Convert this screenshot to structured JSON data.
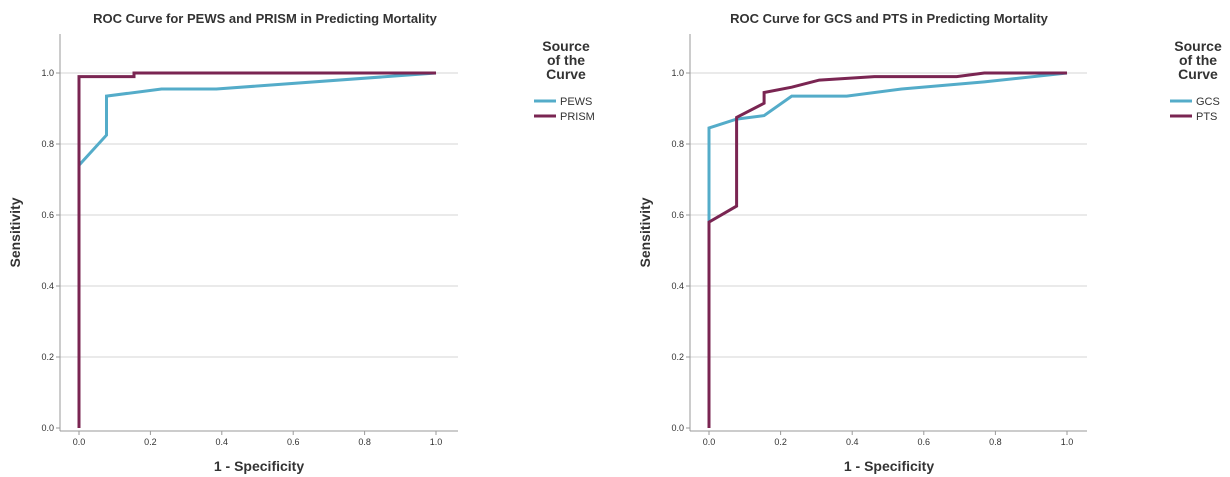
{
  "chart_data": [
    {
      "type": "line",
      "title": "ROC Curve for PEWS and PRISM in Predicting Mortality",
      "xlabel": "1 - Specificity",
      "ylabel": "Sensitivity",
      "xlim": [
        0,
        1
      ],
      "ylim": [
        0,
        1
      ],
      "xticks": [
        "0.0",
        "0.2",
        "0.4",
        "0.6",
        "0.8",
        "1.0"
      ],
      "yticks": [
        "0.0",
        "0.2",
        "0.4",
        "0.6",
        "0.8",
        "1.0"
      ],
      "grid": "horizontal",
      "legend": {
        "title": [
          "Source",
          "of the",
          "Curve"
        ],
        "position": "right"
      },
      "series": [
        {
          "name": "PEWS",
          "color": "#54acc9",
          "x": [
            0.0,
            0.077,
            0.077,
            0.231,
            0.385,
            1.0
          ],
          "y": [
            0.74,
            0.825,
            0.935,
            0.955,
            0.955,
            1.0
          ]
        },
        {
          "name": "PRISM",
          "color": "#7a2552",
          "x": [
            0.0,
            0.0,
            0.154,
            0.154,
            1.0
          ],
          "y": [
            0.0,
            0.99,
            0.99,
            1.0,
            1.0
          ]
        }
      ]
    },
    {
      "type": "line",
      "title": "ROC Curve for GCS and PTS in Predicting Mortality",
      "xlabel": "1 - Specificity",
      "ylabel": "Sensitivity",
      "xlim": [
        0,
        1
      ],
      "ylim": [
        0,
        1
      ],
      "xticks": [
        "0.0",
        "0.2",
        "0.4",
        "0.6",
        "0.8",
        "1.0"
      ],
      "yticks": [
        "0.0",
        "0.2",
        "0.4",
        "0.6",
        "0.8",
        "1.0"
      ],
      "grid": "horizontal",
      "legend": {
        "title": [
          "Source",
          "of the",
          "Curve"
        ],
        "position": "right"
      },
      "series": [
        {
          "name": "GCS",
          "color": "#54acc9",
          "x": [
            0.0,
            0.0,
            0.077,
            0.154,
            0.231,
            0.385,
            0.538,
            0.769,
            1.0
          ],
          "y": [
            0.58,
            0.845,
            0.87,
            0.88,
            0.935,
            0.935,
            0.955,
            0.975,
            1.0
          ]
        },
        {
          "name": "PTS",
          "color": "#7a2552",
          "x": [
            0.0,
            0.0,
            0.077,
            0.077,
            0.154,
            0.154,
            0.231,
            0.308,
            0.462,
            0.692,
            0.769,
            1.0
          ],
          "y": [
            0.0,
            0.58,
            0.625,
            0.875,
            0.915,
            0.945,
            0.96,
            0.98,
            0.99,
            0.99,
            1.0,
            1.0
          ]
        }
      ]
    }
  ]
}
